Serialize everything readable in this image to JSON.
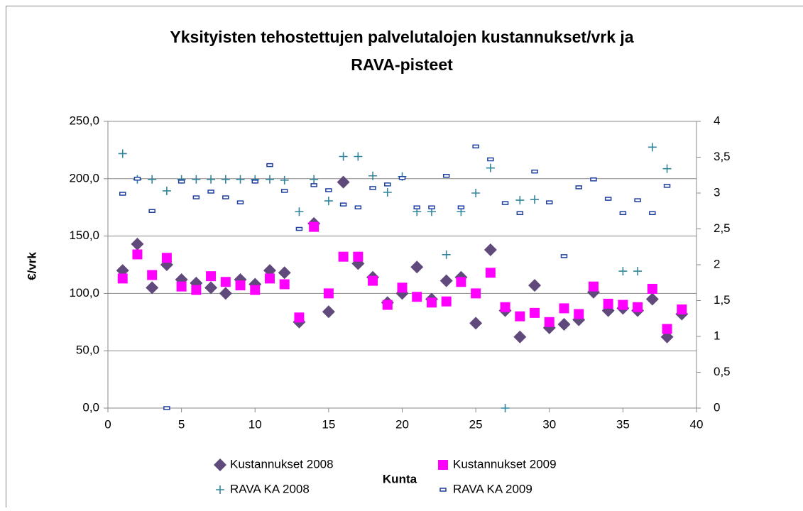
{
  "chart_data": {
    "type": "scatter",
    "title": [
      "Yksityisten tehostettujen palvelutalojen kustannukset/vrk ja",
      "RAVA-pisteet"
    ],
    "x_label": "Kunta",
    "y_label": "€/vrk",
    "x": [
      1,
      2,
      3,
      4,
      5,
      6,
      7,
      8,
      9,
      10,
      11,
      12,
      13,
      14,
      15,
      16,
      17,
      18,
      19,
      20,
      21,
      22,
      23,
      24,
      25,
      26,
      27,
      28,
      29,
      30,
      31,
      32,
      33,
      34,
      35,
      36,
      37,
      38,
      39
    ],
    "xlim": [
      0,
      40
    ],
    "xticks": [
      0,
      5,
      10,
      15,
      20,
      25,
      30,
      35,
      40
    ],
    "ylim": [
      0,
      250
    ],
    "yticks": [
      {
        "value": 0,
        "label": "0,0"
      },
      {
        "value": 50,
        "label": "50,0"
      },
      {
        "value": 100,
        "label": "100,0"
      },
      {
        "value": 150,
        "label": "150,0"
      },
      {
        "value": 200,
        "label": "200,0"
      },
      {
        "value": 250,
        "label": "250,0"
      }
    ],
    "y2lim": [
      0,
      4
    ],
    "y2ticks": [
      0,
      {
        "value": 0.5,
        "label": "0,5"
      },
      1,
      {
        "value": 1.5,
        "label": "1,5"
      },
      2,
      {
        "value": 2.5,
        "label": "2,5"
      },
      3,
      {
        "value": 3.5,
        "label": "3,5"
      },
      4
    ],
    "grid": true,
    "series": [
      {
        "name": "Kustannukset 2008",
        "color": "#604a7b",
        "marker": "diamond",
        "values": [
          120,
          143,
          105,
          125,
          112,
          109,
          105,
          100,
          112,
          108,
          120,
          118,
          75,
          161,
          84,
          197,
          126,
          114,
          92,
          100,
          123,
          95,
          111,
          114,
          74,
          138,
          85,
          62,
          107,
          70,
          73,
          77,
          101,
          85,
          87,
          85,
          95,
          62,
          82
        ]
      },
      {
        "name": "Kustannukset 2009",
        "color": "#ff00ff",
        "marker": "square",
        "values": [
          113,
          134,
          116,
          131,
          106,
          103,
          115,
          110,
          107,
          103,
          113,
          108,
          79,
          158,
          100,
          132,
          132,
          111,
          90,
          105,
          97,
          92,
          93,
          110,
          100,
          118,
          88,
          80,
          83,
          75,
          87,
          82,
          106,
          91,
          90,
          88,
          104,
          69,
          86
        ]
      },
      {
        "name": "RAVA KA 2008",
        "color": "#31859c",
        "marker": "plus",
        "axis": "y2",
        "values": [
          3.55,
          3.19,
          3.19,
          3.03,
          3.19,
          3.19,
          3.19,
          3.19,
          3.19,
          3.19,
          3.19,
          3.18,
          2.74,
          3.19,
          2.89,
          3.51,
          3.51,
          3.24,
          3.01,
          3.23,
          2.74,
          2.74,
          2.14,
          2.74,
          3.0,
          3.35,
          0,
          2.9,
          2.91,
          null,
          null,
          null,
          null,
          null,
          1.91,
          1.91,
          3.64,
          3.34,
          null
        ]
      },
      {
        "name": "RAVA KA 2009",
        "color": "#1f3f9f",
        "marker": "dash",
        "axis": "y2",
        "values": [
          2.99,
          3.2,
          2.75,
          0,
          3.16,
          2.94,
          3.02,
          2.94,
          2.87,
          3.16,
          3.39,
          3.03,
          2.5,
          3.11,
          3.04,
          2.84,
          2.8,
          3.07,
          3.12,
          3.21,
          2.8,
          2.8,
          3.24,
          2.8,
          3.65,
          3.47,
          2.86,
          2.72,
          3.3,
          2.87,
          2.12,
          3.08,
          3.19,
          2.92,
          2.72,
          2.9,
          2.72,
          3.1,
          null
        ]
      }
    ]
  }
}
